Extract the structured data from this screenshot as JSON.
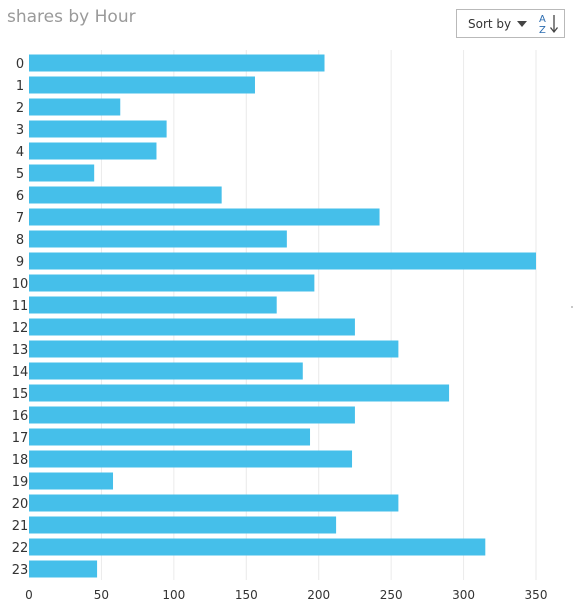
{
  "header": {
    "title": "shares by Hour"
  },
  "sort": {
    "label": "Sort by",
    "icon": "sort-az-icon"
  },
  "colors": {
    "bar": "#45bfea",
    "grid": "#eaeaea",
    "text": "#333333",
    "title": "#9a9a9a"
  },
  "chart_data": {
    "type": "bar",
    "orientation": "horizontal",
    "title": "shares by Hour",
    "xlabel": "",
    "ylabel": "",
    "categories": [
      "0",
      "1",
      "2",
      "3",
      "4",
      "5",
      "6",
      "7",
      "8",
      "9",
      "10",
      "11",
      "12",
      "13",
      "14",
      "15",
      "16",
      "17",
      "18",
      "19",
      "20",
      "21",
      "22",
      "23"
    ],
    "values": [
      204,
      156,
      63,
      95,
      88,
      45,
      133,
      242,
      178,
      350,
      197,
      171,
      225,
      255,
      189,
      290,
      225,
      194,
      223,
      58,
      255,
      212,
      315,
      47
    ],
    "xlim": [
      0,
      350
    ],
    "xticks": [
      0,
      50,
      100,
      150,
      200,
      250,
      300,
      350
    ],
    "grid": true,
    "legend": "none"
  }
}
